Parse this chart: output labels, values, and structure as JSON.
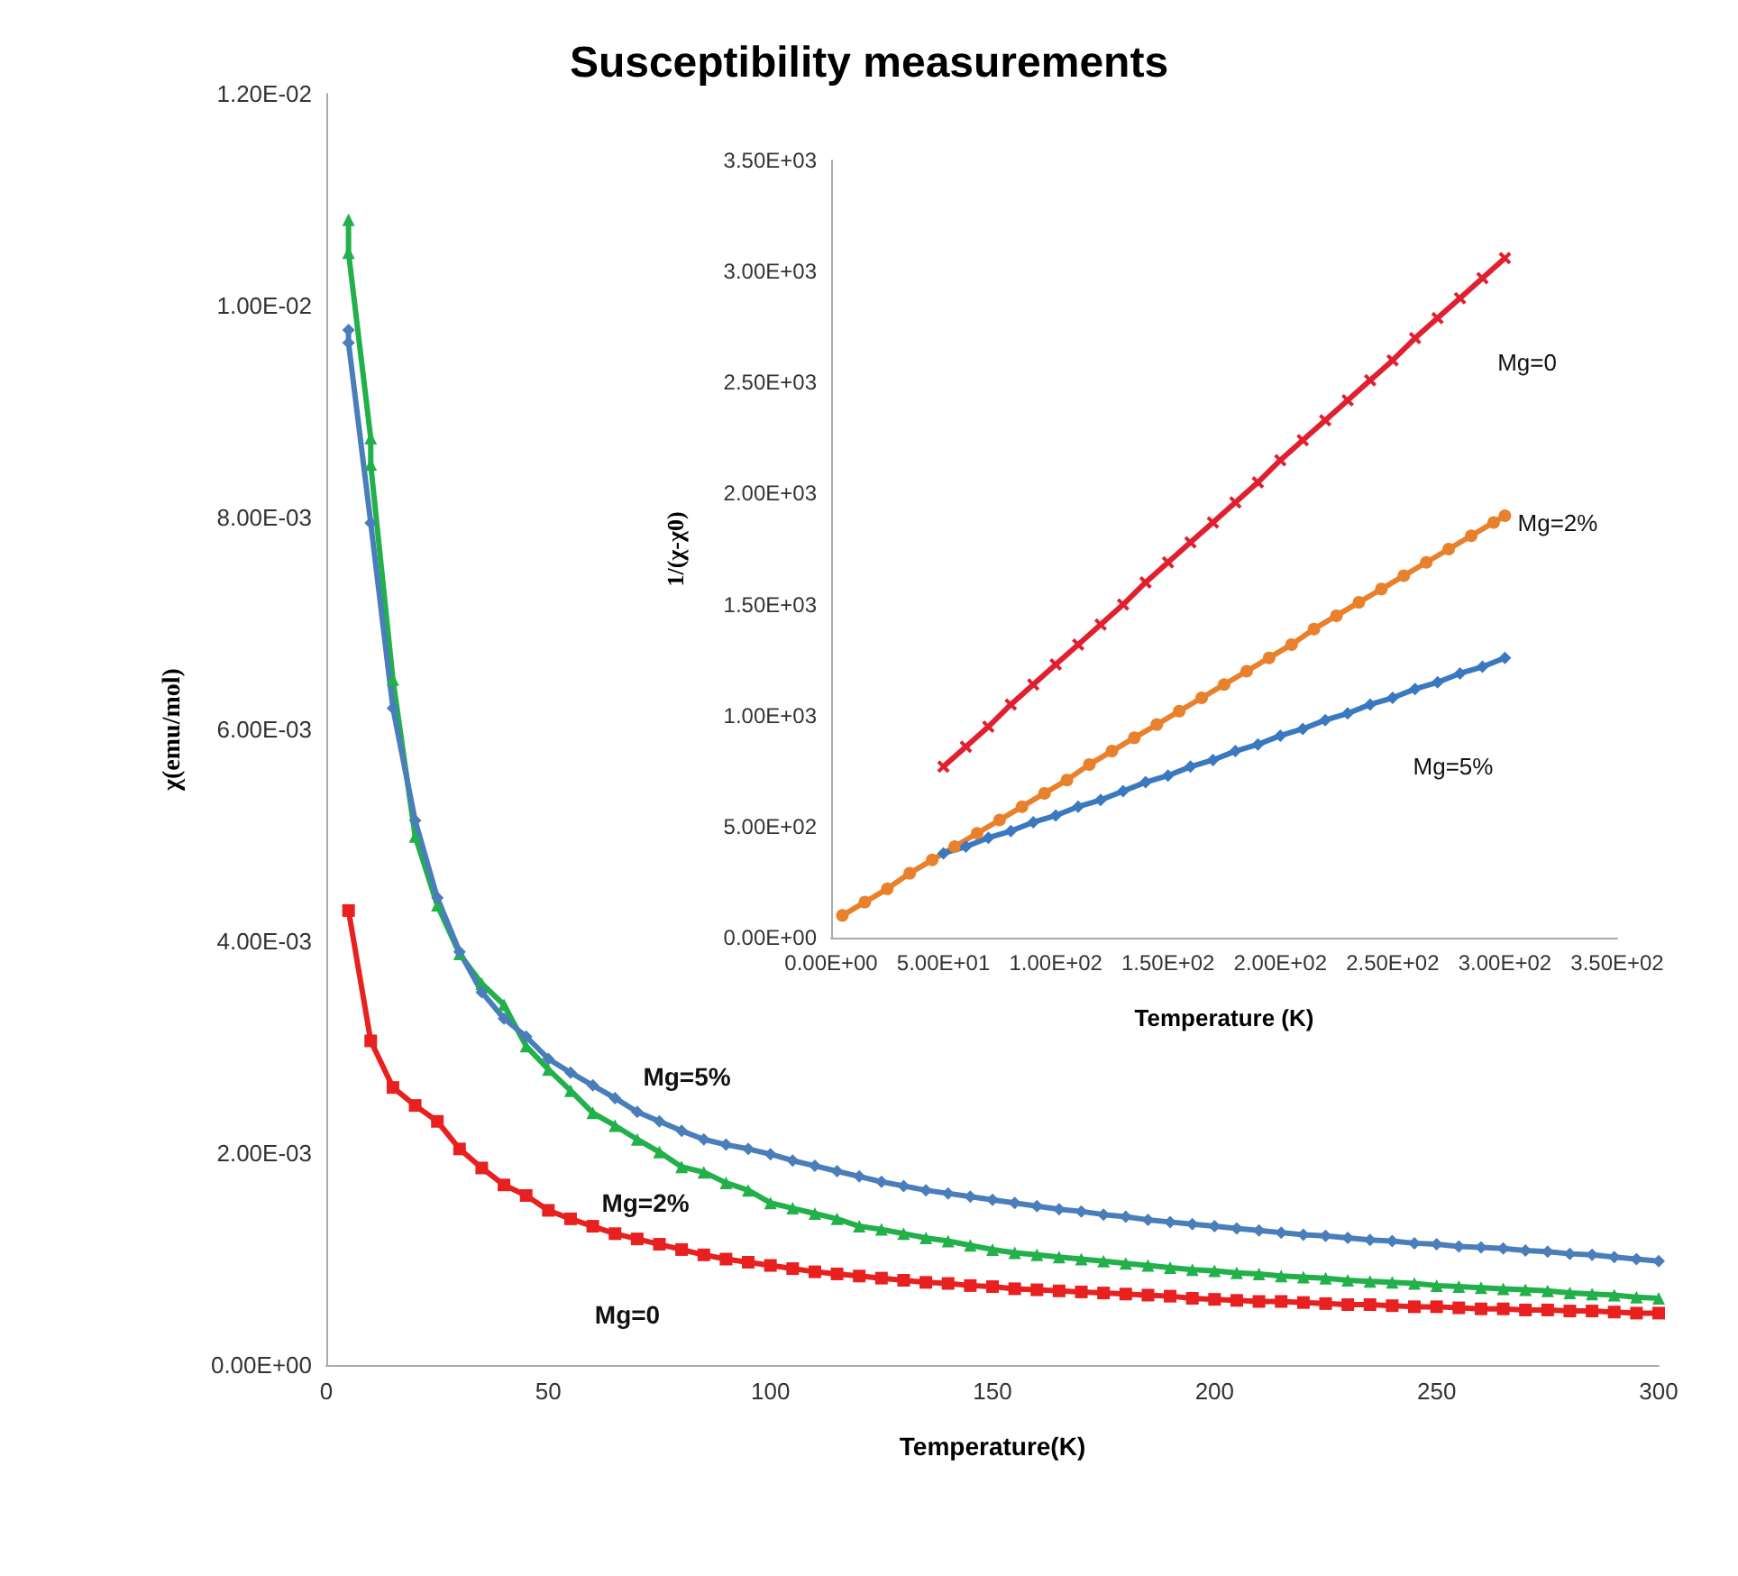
{
  "chart_data": [
    {
      "type": "line",
      "title": "Susceptibility measurements",
      "xlabel": "Temperature(K)",
      "ylabel": "χ(emu/mol)",
      "xlim": [
        0,
        300
      ],
      "xticks": [
        0,
        50,
        100,
        150,
        200,
        250,
        300
      ],
      "ylim": [
        0,
        0.012
      ],
      "yticks": [
        {
          "value": 0,
          "label": "0.00E+00"
        },
        {
          "value": 0.002,
          "label": "2.00E-03"
        },
        {
          "value": 0.004,
          "label": "4.00E-03"
        },
        {
          "value": 0.006,
          "label": "6.00E-03"
        },
        {
          "value": 0.008,
          "label": "8.00E-03"
        },
        {
          "value": 0.01,
          "label": "1.00E-02"
        },
        {
          "value": 0.012,
          "label": "1.20E-02"
        }
      ],
      "grid": false,
      "annotations": [
        "Mg=5%",
        "Mg=2%",
        "Mg=0"
      ],
      "series": [
        {
          "color": "#e82020",
          "marker": "square",
          "x": [
            5,
            10,
            15,
            20,
            25,
            30,
            35,
            40,
            45,
            50,
            55,
            60,
            65,
            70,
            75,
            80,
            85,
            90,
            95,
            100,
            105,
            110,
            115,
            120,
            125,
            130,
            135,
            140,
            145,
            150,
            155,
            160,
            165,
            170,
            175,
            180,
            185,
            190,
            195,
            200,
            205,
            210,
            215,
            220,
            225,
            230,
            235,
            240,
            245,
            250,
            255,
            260,
            265,
            270,
            275,
            280,
            285,
            290,
            295,
            300
          ],
          "values": [
            0.00429,
            0.00306,
            0.00262,
            0.00245,
            0.0023,
            0.00204,
            0.00186,
            0.0017,
            0.0016,
            0.00146,
            0.00138,
            0.00131,
            0.00124,
            0.00119,
            0.00114,
            0.00109,
            0.00104,
            0.001,
            0.00097,
            0.00094,
            0.00091,
            0.00088,
            0.00086,
            0.00084,
            0.00082,
            0.0008,
            0.00078,
            0.00077,
            0.00075,
            0.00074,
            0.00072,
            0.00071,
            0.0007,
            0.00069,
            0.00068,
            0.00067,
            0.00066,
            0.00065,
            0.00063,
            0.00062,
            0.00061,
            0.0006,
            0.0006,
            0.00059,
            0.00058,
            0.00057,
            0.00057,
            0.00056,
            0.00055,
            0.00055,
            0.00054,
            0.00053,
            0.00053,
            0.00052,
            0.00052,
            0.00051,
            0.00051,
            0.0005,
            0.00049,
            0.00049
          ]
        },
        {
          "color": "#22b04a",
          "marker": "triangle",
          "x": [
            5,
            5,
            10,
            10,
            15,
            20,
            25,
            30,
            35,
            40,
            45,
            50,
            55,
            60,
            65,
            70,
            75,
            80,
            85,
            90,
            95,
            100,
            105,
            110,
            115,
            120,
            125,
            130,
            135,
            140,
            145,
            150,
            155,
            160,
            165,
            170,
            175,
            180,
            185,
            190,
            195,
            200,
            205,
            210,
            215,
            220,
            225,
            230,
            235,
            240,
            245,
            250,
            255,
            260,
            265,
            270,
            275,
            280,
            285,
            290,
            295,
            300
          ],
          "values": [
            0.01081,
            0.0105,
            0.00875,
            0.0085,
            0.00647,
            0.00499,
            0.00434,
            0.00388,
            0.0036,
            0.0034,
            0.00301,
            0.00279,
            0.00259,
            0.00238,
            0.00226,
            0.00213,
            0.00201,
            0.00187,
            0.00182,
            0.00172,
            0.00165,
            0.00153,
            0.00148,
            0.00143,
            0.00138,
            0.00131,
            0.00128,
            0.00124,
            0.0012,
            0.00117,
            0.00113,
            0.00109,
            0.00106,
            0.00104,
            0.00102,
            0.001,
            0.00098,
            0.00096,
            0.00094,
            0.00092,
            0.0009,
            0.00089,
            0.00087,
            0.00086,
            0.00084,
            0.00083,
            0.00082,
            0.0008,
            0.00079,
            0.00078,
            0.00077,
            0.00075,
            0.00074,
            0.00073,
            0.00072,
            0.00071,
            0.0007,
            0.00068,
            0.00067,
            0.00066,
            0.00064,
            0.00063
          ]
        },
        {
          "color": "#4a7ebb",
          "marker": "diamond",
          "x": [
            5,
            5,
            10,
            15,
            20,
            25,
            30,
            35,
            40,
            45,
            50,
            55,
            60,
            65,
            70,
            75,
            80,
            85,
            90,
            95,
            100,
            105,
            110,
            115,
            120,
            125,
            130,
            135,
            140,
            145,
            150,
            155,
            160,
            165,
            170,
            175,
            180,
            185,
            190,
            195,
            200,
            205,
            210,
            215,
            220,
            225,
            230,
            235,
            240,
            245,
            250,
            255,
            260,
            265,
            270,
            275,
            280,
            285,
            290,
            295,
            300
          ],
          "values": [
            0.00977,
            0.00965,
            0.00795,
            0.0062,
            0.00514,
            0.00441,
            0.0039,
            0.00352,
            0.00327,
            0.0031,
            0.00289,
            0.00276,
            0.00264,
            0.00252,
            0.00239,
            0.0023,
            0.00221,
            0.00213,
            0.00208,
            0.00204,
            0.00199,
            0.00193,
            0.00188,
            0.00183,
            0.00178,
            0.00173,
            0.00169,
            0.00165,
            0.00162,
            0.00159,
            0.00156,
            0.00153,
            0.0015,
            0.00147,
            0.00145,
            0.00142,
            0.0014,
            0.00137,
            0.00135,
            0.00133,
            0.00131,
            0.00129,
            0.00127,
            0.00125,
            0.00123,
            0.00122,
            0.0012,
            0.00118,
            0.00117,
            0.00115,
            0.00114,
            0.00112,
            0.00111,
            0.0011,
            0.00108,
            0.00107,
            0.00105,
            0.00104,
            0.00102,
            0.001,
            0.00098
          ]
        }
      ]
    },
    {
      "type": "line",
      "xlabel": "Temperature (K)",
      "ylabel": "1/(χ-χ0)",
      "xlim": [
        0,
        350
      ],
      "xticks": [
        {
          "value": 0,
          "label": "0.00E+00"
        },
        {
          "value": 50,
          "label": "5.00E+01"
        },
        {
          "value": 100,
          "label": "1.00E+02"
        },
        {
          "value": 150,
          "label": "1.50E+02"
        },
        {
          "value": 200,
          "label": "2.00E+02"
        },
        {
          "value": 250,
          "label": "2.50E+02"
        },
        {
          "value": 300,
          "label": "3.00E+02"
        },
        {
          "value": 350,
          "label": "3.50E+02"
        }
      ],
      "ylim": [
        0,
        3500
      ],
      "yticks": [
        {
          "value": 0,
          "label": "0.00E+00"
        },
        {
          "value": 500,
          "label": "5.00E+02"
        },
        {
          "value": 1000,
          "label": "1.00E+03"
        },
        {
          "value": 1500,
          "label": "1.50E+03"
        },
        {
          "value": 2000,
          "label": "2.00E+03"
        },
        {
          "value": 2500,
          "label": "2.50E+03"
        },
        {
          "value": 3000,
          "label": "3.00E+03"
        },
        {
          "value": 3500,
          "label": "3.50E+03"
        }
      ],
      "grid": false,
      "annotations": [
        "Mg=0",
        "Mg=2%",
        "Mg=5%"
      ],
      "series": [
        {
          "color": "#e02030",
          "marker": "cross",
          "x": [
            50,
            60,
            70,
            80,
            90,
            100,
            110,
            120,
            130,
            140,
            150,
            160,
            170,
            180,
            190,
            200,
            210,
            220,
            230,
            240,
            250,
            260,
            270,
            280,
            290,
            300
          ],
          "values": [
            770,
            860,
            950,
            1050,
            1140,
            1230,
            1320,
            1410,
            1500,
            1600,
            1690,
            1780,
            1870,
            1960,
            2050,
            2150,
            2240,
            2330,
            2420,
            2510,
            2600,
            2700,
            2790,
            2880,
            2970,
            3060
          ]
        },
        {
          "color": "#e8802c",
          "marker": "circle",
          "x": [
            5,
            15,
            25,
            35,
            45,
            55,
            65,
            75,
            85,
            95,
            105,
            115,
            125,
            135,
            145,
            155,
            165,
            175,
            185,
            195,
            205,
            215,
            225,
            235,
            245,
            255,
            265,
            275,
            285,
            295,
            300
          ],
          "values": [
            100,
            160,
            220,
            290,
            350,
            410,
            470,
            530,
            590,
            650,
            710,
            780,
            840,
            900,
            960,
            1020,
            1080,
            1140,
            1200,
            1260,
            1320,
            1390,
            1450,
            1510,
            1570,
            1630,
            1690,
            1750,
            1810,
            1870,
            1900
          ]
        },
        {
          "color": "#3a78c0",
          "marker": "diamond",
          "x": [
            50,
            60,
            70,
            80,
            90,
            100,
            110,
            120,
            130,
            140,
            150,
            160,
            170,
            180,
            190,
            200,
            210,
            220,
            230,
            240,
            250,
            260,
            270,
            280,
            290,
            300
          ],
          "values": [
            380,
            410,
            450,
            480,
            520,
            550,
            590,
            620,
            660,
            700,
            730,
            770,
            800,
            840,
            870,
            910,
            940,
            980,
            1010,
            1050,
            1080,
            1120,
            1150,
            1190,
            1220,
            1260
          ]
        }
      ]
    }
  ]
}
